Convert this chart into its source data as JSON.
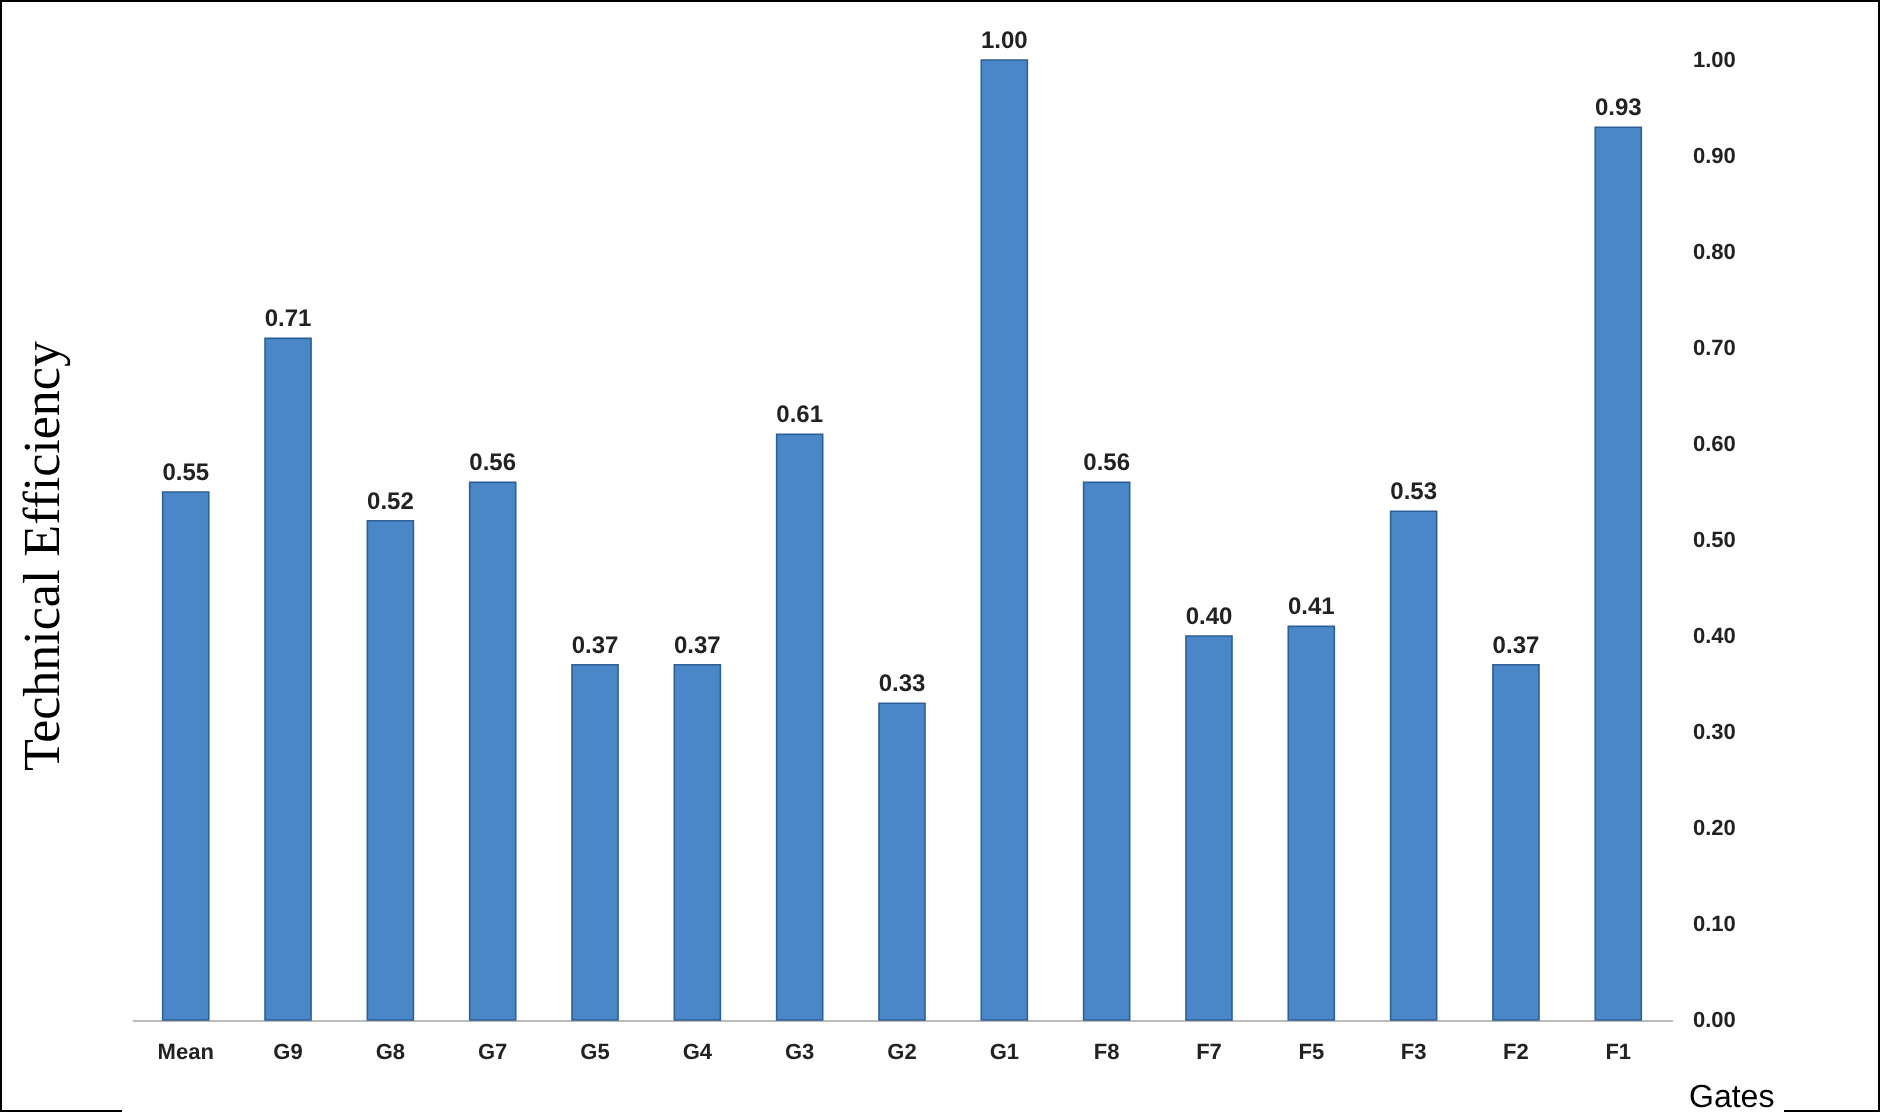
{
  "chart_data": {
    "type": "bar",
    "ylabel": "Technical Efficiency",
    "xlabel": "Gates",
    "categories": [
      "Mean",
      "G9",
      "G8",
      "G7",
      "G5",
      "G4",
      "G3",
      "G2",
      "G1",
      "F8",
      "F7",
      "F5",
      "F3",
      "F2",
      "F1"
    ],
    "values": [
      0.55,
      0.71,
      0.52,
      0.56,
      0.37,
      0.37,
      0.61,
      0.33,
      1.0,
      0.56,
      0.4,
      0.41,
      0.53,
      0.37,
      0.93
    ],
    "value_labels": [
      "0.55",
      "0.71",
      "0.52",
      "0.56",
      "0.37",
      "0.37",
      "0.61",
      "0.33",
      "1.00",
      "0.56",
      "0.40",
      "0.41",
      "0.53",
      "0.37",
      "0.93"
    ],
    "color": "#4a87c9",
    "ylim": [
      0,
      1
    ],
    "yticks": [
      {
        "value": 0,
        "label": "0.00"
      },
      {
        "value": 0.1,
        "label": "0.10"
      },
      {
        "value": 0.2,
        "label": "0.20"
      },
      {
        "value": 0.3,
        "label": "0.30"
      },
      {
        "value": 0.4,
        "label": "0.40"
      },
      {
        "value": 0.5,
        "label": "0.50"
      },
      {
        "value": 0.6,
        "label": "0.60"
      },
      {
        "value": 0.7,
        "label": "0.70"
      },
      {
        "value": 0.8,
        "label": "0.80"
      },
      {
        "value": 0.9,
        "label": "0.90"
      },
      {
        "value": 1,
        "label": "1.00"
      }
    ],
    "grid": false
  }
}
